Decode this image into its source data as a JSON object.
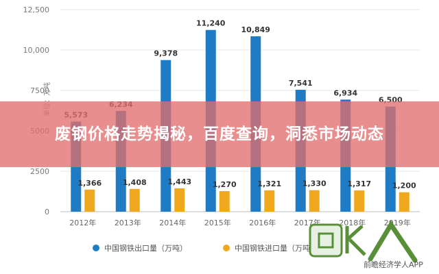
{
  "banner": {
    "title": "废钢价格走势揭秘，百度查询，洞悉市场动态"
  },
  "chart_data": {
    "type": "bar",
    "categories": [
      "2012年",
      "2013年",
      "2014年",
      "2015年",
      "2016年",
      "2017年",
      "2018年",
      "2019年"
    ],
    "series": [
      {
        "name": "中国钢铁出口量（万吨）",
        "color": "#1f7cc4",
        "values": [
          5573,
          6234,
          9378,
          11240,
          10849,
          7541,
          6934,
          6500
        ],
        "labels": [
          "5,573",
          "6,234",
          "9,378",
          "11,240",
          "10,849",
          "7,541",
          "6,934",
          "6,500"
        ]
      },
      {
        "name": "中国钢铁进口量（万吨）",
        "color": "#f0a91e",
        "values": [
          1366,
          1408,
          1443,
          1270,
          1321,
          1330,
          1317,
          1200
        ],
        "labels": [
          "1,366",
          "1,408",
          "1,443",
          "1,270",
          "1,321",
          "1,330",
          "1,317",
          "1,200"
        ]
      }
    ],
    "ylabel": "单位：万吨",
    "ylim": [
      0,
      12500
    ],
    "yticks": [
      0,
      2500,
      5000,
      7500,
      10000,
      12500
    ],
    "ytick_labels": [
      "0",
      "2500",
      "5000",
      "7500",
      "10,000",
      "12,500"
    ],
    "grid": true,
    "legend_position": "bottom"
  },
  "watermark": {
    "text": "前瞻经济学人APP",
    "logo_text": "回收"
  }
}
